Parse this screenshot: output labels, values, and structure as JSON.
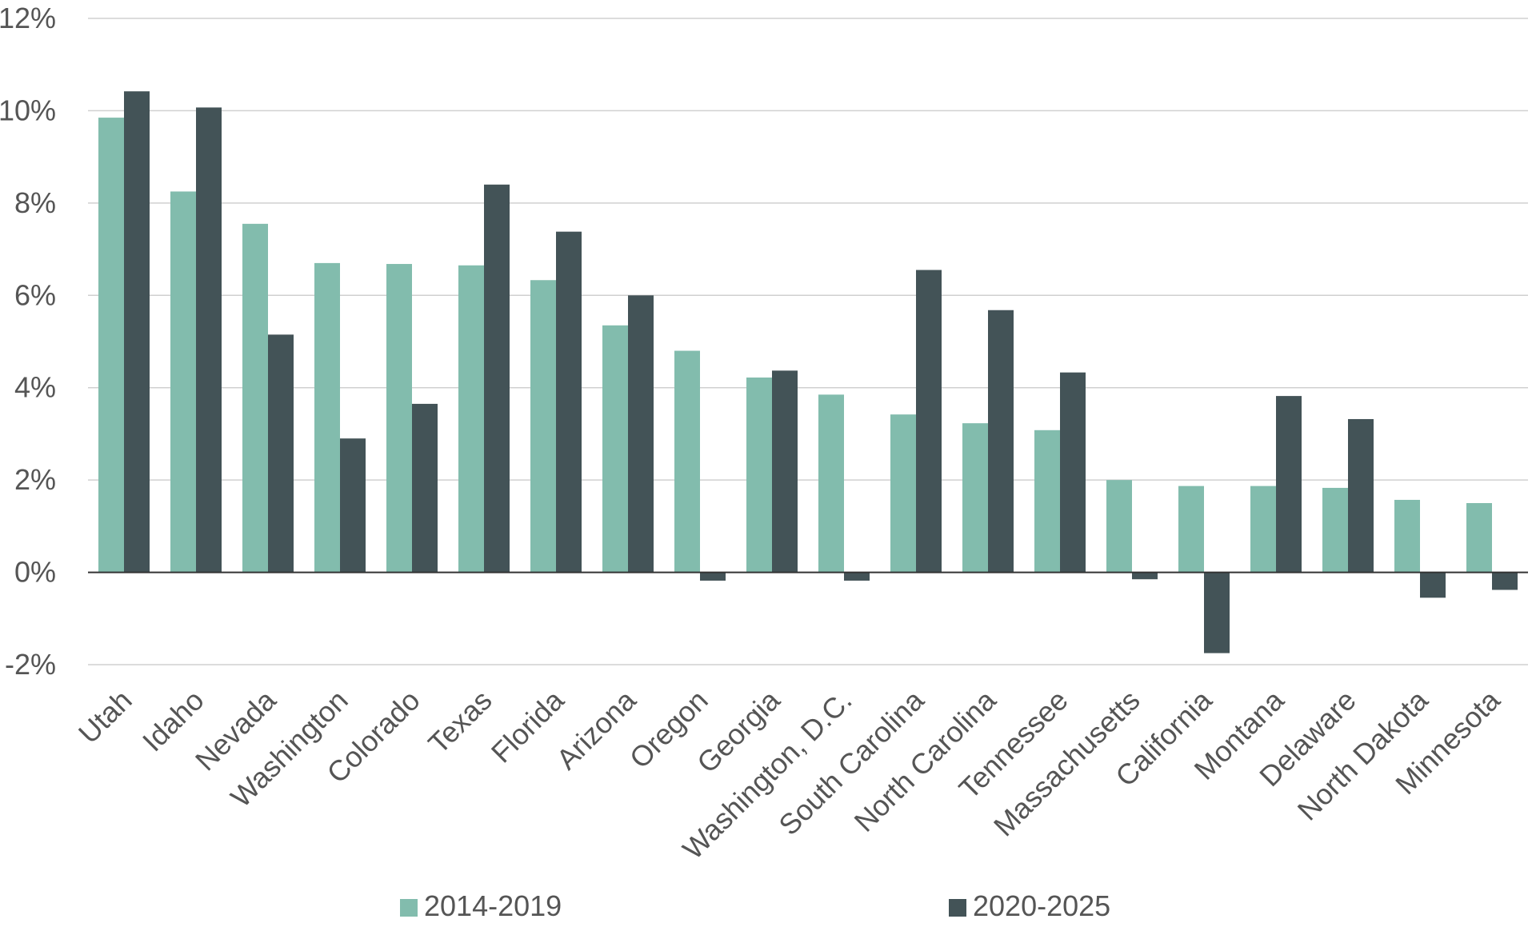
{
  "chart_data": {
    "type": "bar",
    "categories": [
      "Utah",
      "Idaho",
      "Nevada",
      "Washington",
      "Colorado",
      "Texas",
      "Florida",
      "Arizona",
      "Oregon",
      "Georgia",
      "Washington, D.C.",
      "South Carolina",
      "North Carolina",
      "Tennessee",
      "Massachusetts",
      "California",
      "Montana",
      "Delaware",
      "North Dakota",
      "Minnesota"
    ],
    "series": [
      {
        "name": "2014-2019",
        "color": "#82bcad",
        "values": [
          9.85,
          8.25,
          7.55,
          6.7,
          6.68,
          6.65,
          6.33,
          5.35,
          4.8,
          4.22,
          3.85,
          3.42,
          3.23,
          3.08,
          2.0,
          1.87,
          1.87,
          1.83,
          1.57,
          1.5
        ]
      },
      {
        "name": "2020-2025",
        "color": "#435357",
        "values": [
          10.42,
          10.07,
          5.15,
          2.9,
          3.65,
          8.4,
          7.38,
          6.0,
          -0.18,
          4.37,
          -0.18,
          6.55,
          5.68,
          4.33,
          -0.15,
          -1.75,
          3.82,
          3.32,
          -0.55,
          -0.38
        ]
      }
    ],
    "yticks": [
      -2,
      0,
      2,
      4,
      6,
      8,
      10,
      12
    ],
    "ytick_labels": [
      "-2%",
      "0%",
      "2%",
      "4%",
      "6%",
      "8%",
      "10%",
      "12%"
    ],
    "ylim": [
      -2,
      12
    ],
    "grid": true,
    "legend_position": "bottom",
    "title": "",
    "xlabel": "",
    "ylabel": ""
  }
}
